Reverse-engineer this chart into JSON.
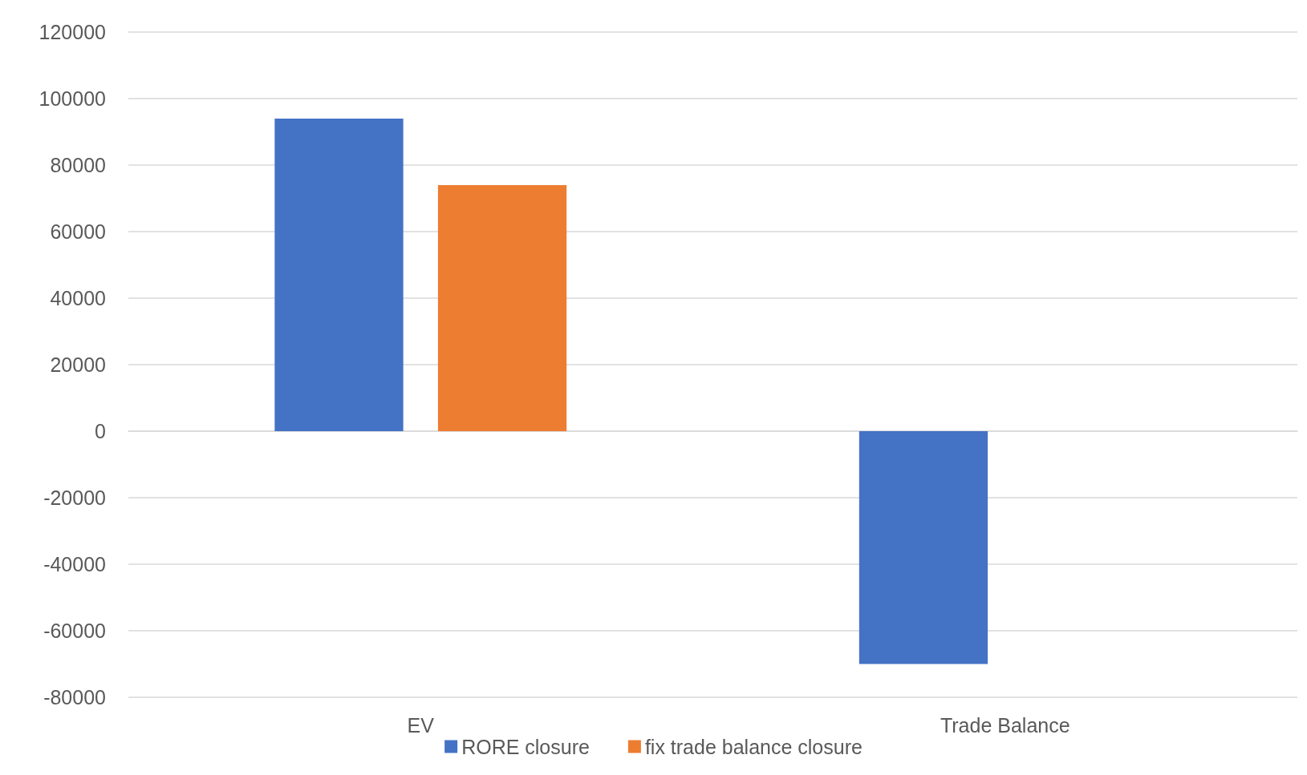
{
  "chart_data": {
    "type": "bar",
    "categories": [
      "EV",
      "Trade Balance"
    ],
    "series": [
      {
        "name": "RORE closure",
        "color": "#4472c4",
        "values": [
          94000,
          -70000
        ]
      },
      {
        "name": "fix trade balance closure",
        "color": "#ed7d31",
        "values": [
          74000,
          0
        ]
      }
    ],
    "ylim": [
      -80000,
      120000
    ],
    "yticks": [
      -80000,
      -60000,
      -40000,
      -20000,
      0,
      20000,
      40000,
      60000,
      80000,
      100000,
      120000
    ],
    "grid": "y",
    "legend": "bottom"
  }
}
